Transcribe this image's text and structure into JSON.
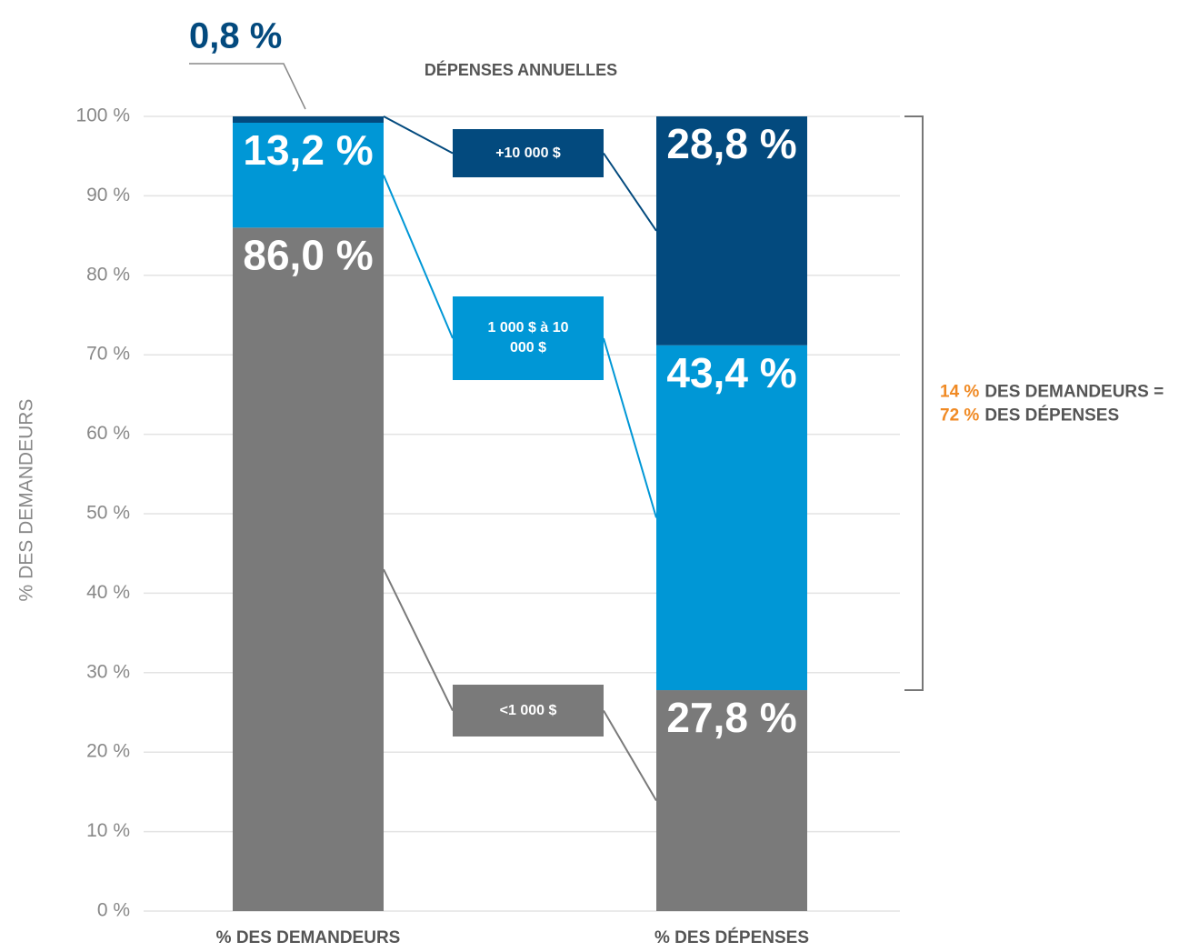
{
  "chart_data": {
    "type": "stacked_bar",
    "annotation": "DÉPENSES ANNUELLES",
    "ylabel": "% DES DEMANDEURS",
    "categories": [
      "% DES DEMANDEURS",
      "% DES DÉPENSES"
    ],
    "series": [
      {
        "name": "<1 000 $",
        "color": "#7a7a7a",
        "values": [
          86.0,
          27.8
        ],
        "value_labels": [
          "86,0 %",
          "27,8 %"
        ]
      },
      {
        "name": "1 000 $ à 10 000 $",
        "color": "#0097d6",
        "values": [
          13.2,
          43.4
        ],
        "value_labels": [
          "13,2 %",
          "43,4 %"
        ]
      },
      {
        "name": "+10 000 $",
        "color": "#034a7e",
        "values": [
          0.8,
          28.8
        ],
        "value_labels": [
          "0,8 %",
          "28,8 %"
        ]
      }
    ],
    "ylim": [
      0,
      100
    ],
    "yticks": [
      {
        "value": 0,
        "label": "0 %"
      },
      {
        "value": 10,
        "label": "10 %"
      },
      {
        "value": 20,
        "label": "20 %"
      },
      {
        "value": 30,
        "label": "30 %"
      },
      {
        "value": 40,
        "label": "40 %"
      },
      {
        "value": 50,
        "label": "50 %"
      },
      {
        "value": 60,
        "label": "60 %"
      },
      {
        "value": 70,
        "label": "70 %"
      },
      {
        "value": 80,
        "label": "80 %"
      },
      {
        "value": 90,
        "label": "90 %"
      },
      {
        "value": 100,
        "label": "100 %"
      }
    ],
    "grid": true,
    "bracket_note": [
      [
        "14 %",
        "DES DEMANDEURS ="
      ],
      [
        "72 %",
        "DES DÉPENSES"
      ]
    ]
  }
}
